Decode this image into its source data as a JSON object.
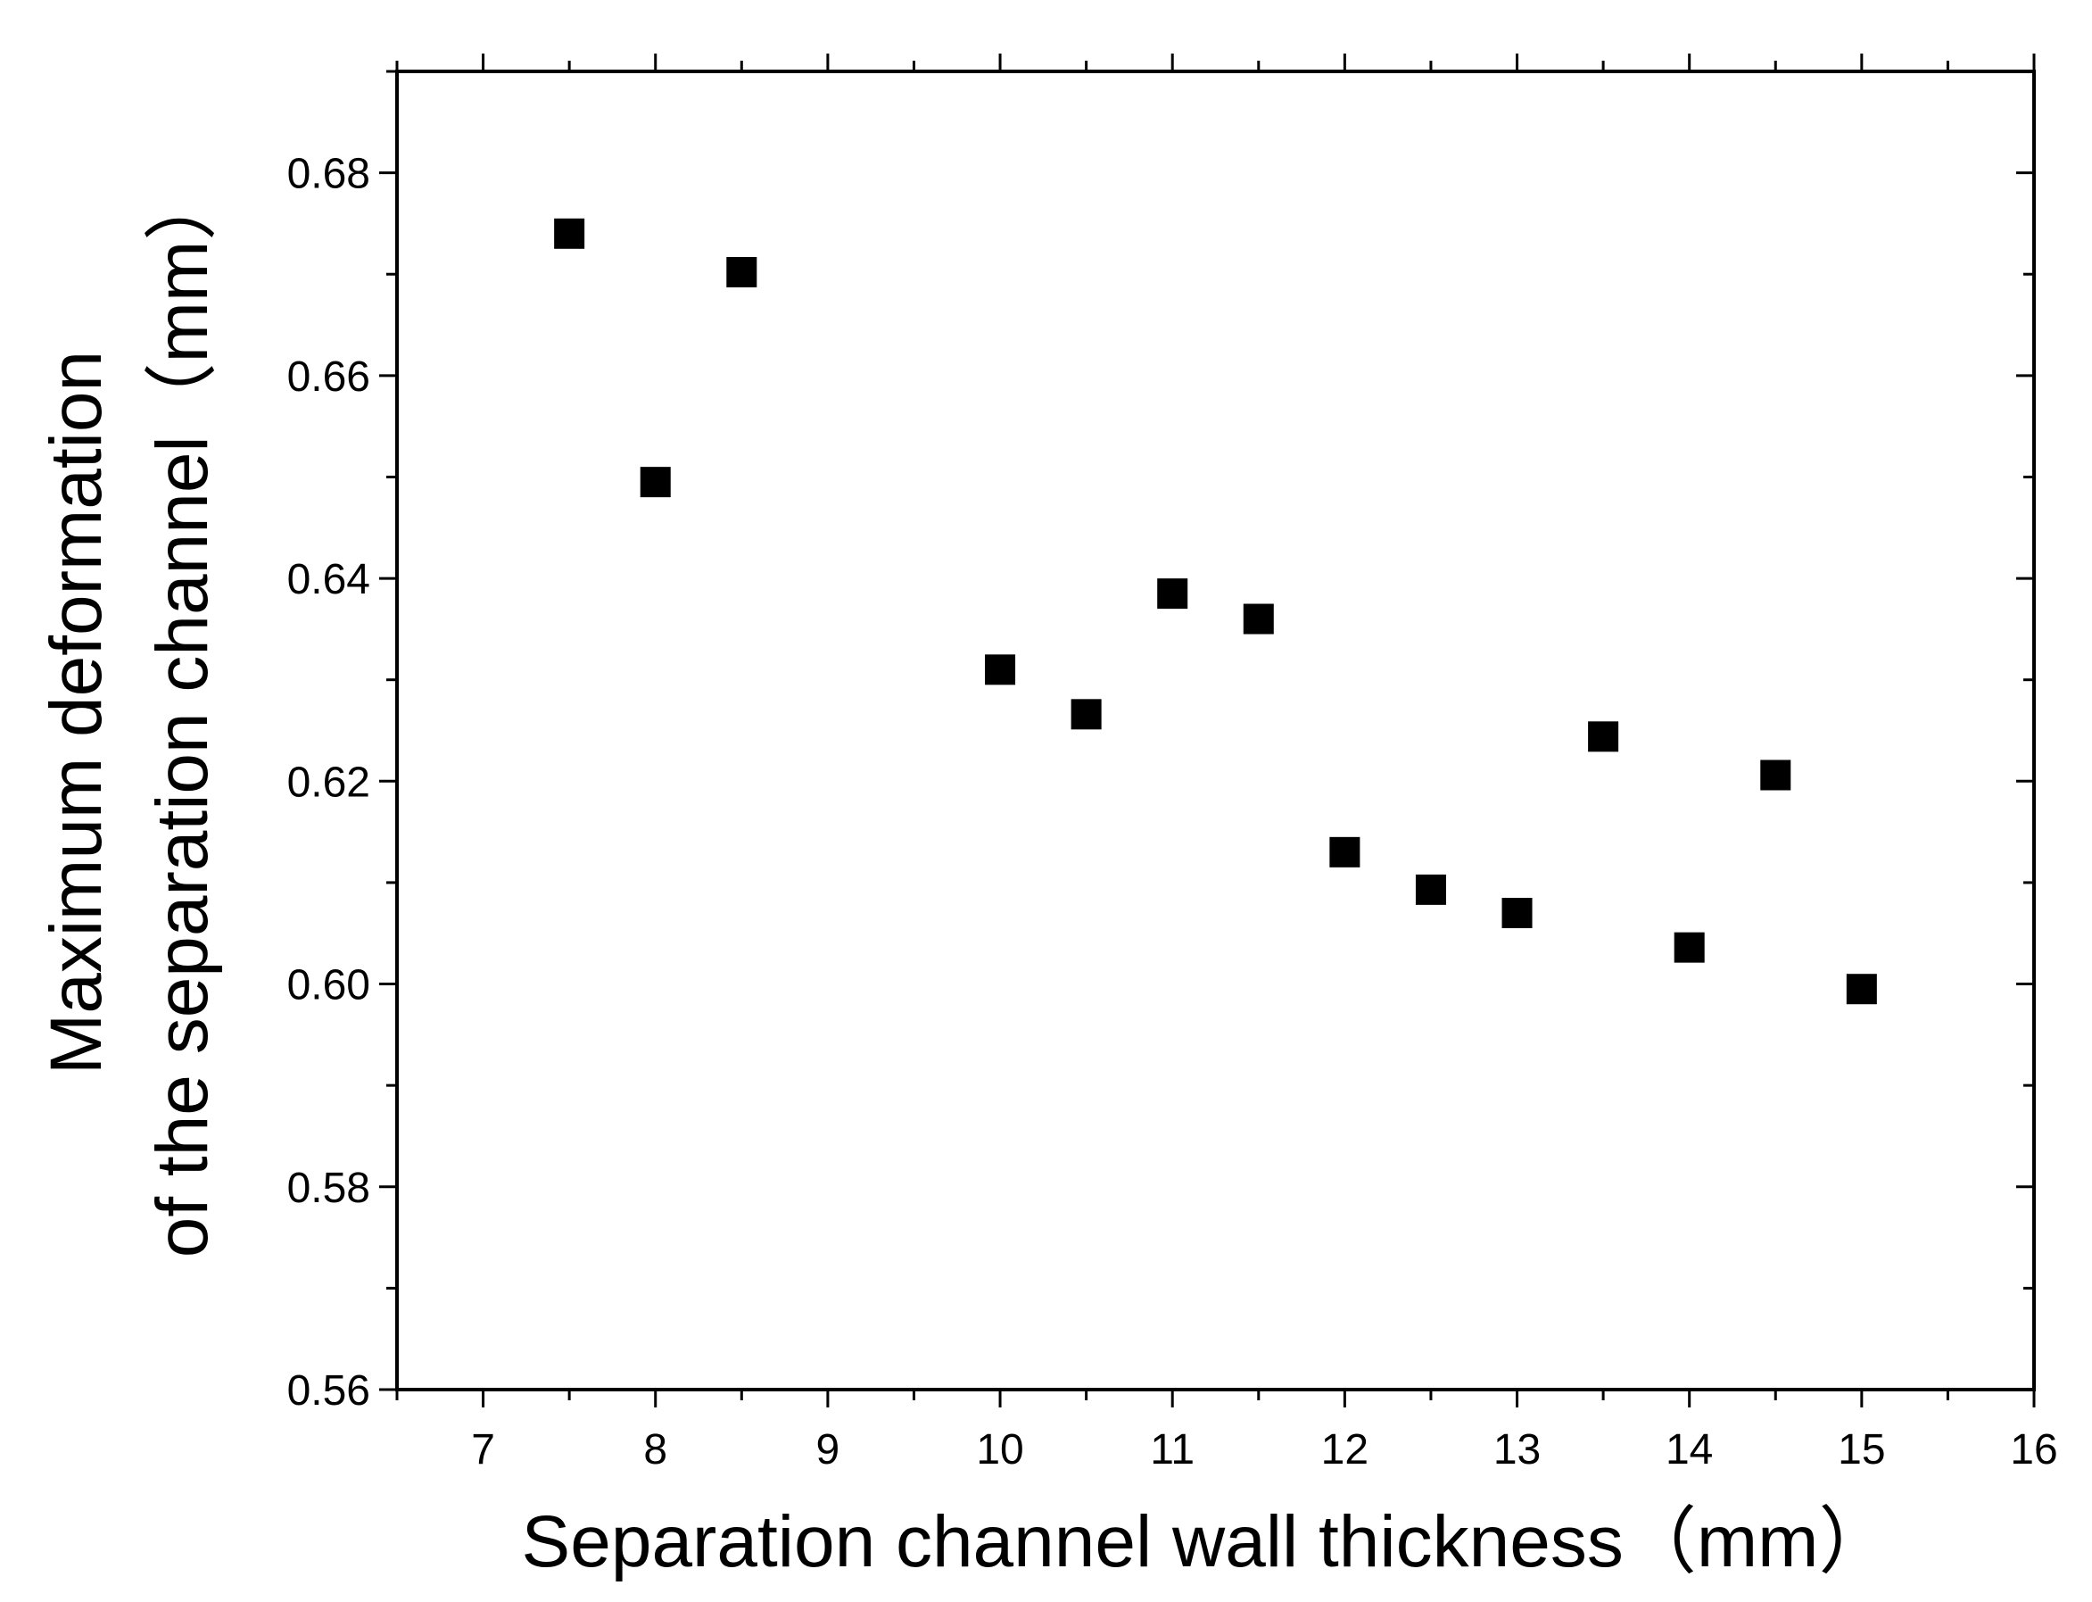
{
  "chart_data": {
    "type": "scatter",
    "title": "",
    "xlabel": "Separation channel wall thickness（mm）",
    "ylabel_line1": "Maximum deformation",
    "ylabel_line2": "of the separation channel（mm）",
    "xlim": [
      6.5,
      16
    ],
    "ylim": [
      0.56,
      0.69
    ],
    "x_ticks": [
      7,
      8,
      9,
      10,
      11,
      12,
      13,
      14,
      15,
      16
    ],
    "x_tick_labels": [
      "7",
      "8",
      "9",
      "10",
      "11",
      "12",
      "13",
      "14",
      "15",
      "16"
    ],
    "y_ticks": [
      0.56,
      0.58,
      0.6,
      0.62,
      0.64,
      0.66,
      0.68
    ],
    "y_tick_labels": [
      "0.56",
      "0.58",
      "0.60",
      "0.62",
      "0.64",
      "0.66",
      "0.68"
    ],
    "x_minor_step": 0.5,
    "y_minor_step": 0.01,
    "grid": false,
    "marker": "square",
    "marker_color": "#000000",
    "series": [
      {
        "name": "Maximum deformation",
        "points": [
          {
            "x": 7.5,
            "y": 0.674
          },
          {
            "x": 8.0,
            "y": 0.6495
          },
          {
            "x": 8.5,
            "y": 0.6702
          },
          {
            "x": 10.0,
            "y": 0.631
          },
          {
            "x": 10.5,
            "y": 0.6266
          },
          {
            "x": 11.0,
            "y": 0.6385
          },
          {
            "x": 11.5,
            "y": 0.636
          },
          {
            "x": 12.0,
            "y": 0.613
          },
          {
            "x": 12.5,
            "y": 0.6093
          },
          {
            "x": 13.0,
            "y": 0.607
          },
          {
            "x": 13.5,
            "y": 0.6244
          },
          {
            "x": 14.0,
            "y": 0.6036
          },
          {
            "x": 14.5,
            "y": 0.6206
          },
          {
            "x": 15.0,
            "y": 0.5995
          }
        ]
      }
    ]
  }
}
